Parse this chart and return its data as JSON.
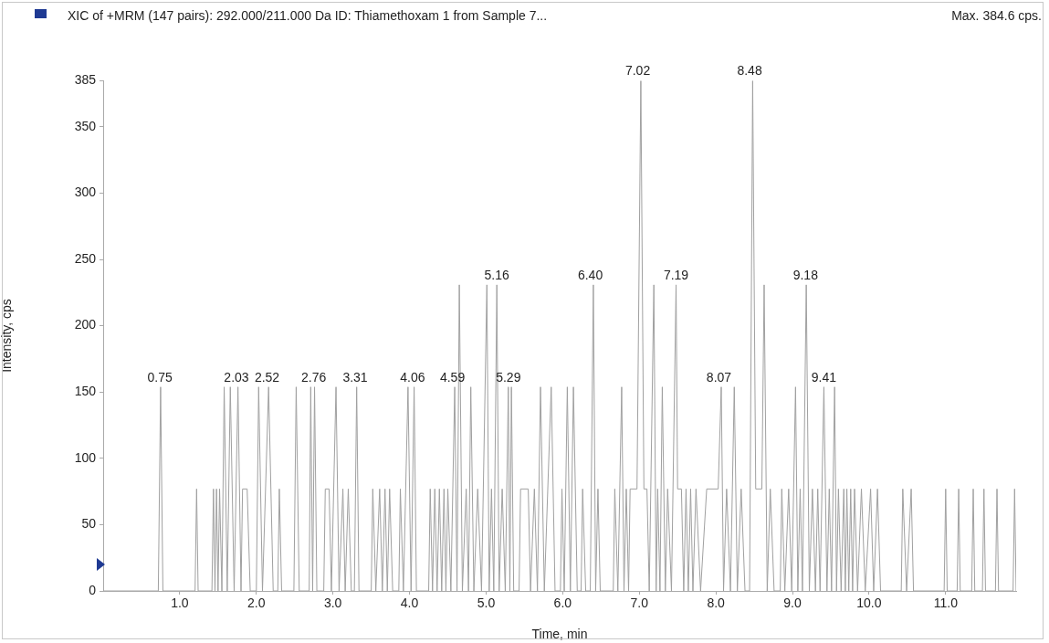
{
  "chart_data": {
    "type": "line",
    "title": "XIC of +MRM (147 pairs): 292.000/211.000 Da ID: Thiamethoxam 1  from Sample 7...",
    "xlabel": "Time, min",
    "ylabel": "Intensity, cps",
    "xlim": [
      0,
      11.92
    ],
    "ylim": [
      0,
      385
    ],
    "xticks": [
      {
        "value": 1,
        "label": "1.0"
      },
      {
        "value": 2,
        "label": "2.0"
      },
      {
        "value": 3,
        "label": "3.0"
      },
      {
        "value": 4,
        "label": "4.0"
      },
      {
        "value": 5,
        "label": "5.0"
      },
      {
        "value": 6,
        "label": "6.0"
      },
      {
        "value": 7,
        "label": "7.0"
      },
      {
        "value": 8,
        "label": "8.0"
      },
      {
        "value": 9,
        "label": "9.0"
      },
      {
        "value": 10,
        "label": "10.0"
      },
      {
        "value": 11,
        "label": "11.0"
      }
    ],
    "yticks": [
      0,
      50,
      100,
      150,
      200,
      250,
      300,
      350,
      385
    ],
    "legend": false,
    "grid": false,
    "series": [
      {
        "color": "#a0a0a0",
        "x": [
          0,
          0.72,
          0.75,
          0.78,
          1.2,
          1.22,
          1.24,
          1.42,
          1.44,
          1.46,
          1.48,
          1.5,
          1.52,
          1.55,
          1.58,
          1.62,
          1.66,
          1.71,
          1.76,
          1.8,
          1.82,
          1.88,
          1.92,
          2.0,
          2.03,
          2.08,
          2.16,
          2.22,
          2.28,
          2.3,
          2.33,
          2.49,
          2.52,
          2.56,
          2.69,
          2.71,
          2.735,
          2.76,
          2.79,
          2.88,
          2.9,
          2.95,
          2.98,
          3.04,
          3.08,
          3.13,
          3.16,
          3.2,
          3.24,
          3.28,
          3.31,
          3.34,
          3.5,
          3.52,
          3.56,
          3.61,
          3.645,
          3.68,
          3.71,
          3.74,
          3.78,
          3.86,
          3.88,
          3.92,
          3.98,
          4.02,
          4.06,
          4.09,
          4.25,
          4.27,
          4.3,
          4.33,
          4.36,
          4.39,
          4.42,
          4.45,
          4.475,
          4.5,
          4.54,
          4.59,
          4.62,
          4.65,
          4.69,
          4.74,
          4.77,
          4.8,
          4.84,
          4.89,
          4.94,
          5.01,
          5.04,
          5.07,
          5.1,
          5.14,
          5.17,
          5.21,
          5.25,
          5.29,
          5.31,
          5.33,
          5.36,
          5.43,
          5.45,
          5.55,
          5.58,
          5.63,
          5.67,
          5.71,
          5.76,
          5.85,
          5.9,
          5.97,
          5.99,
          6.02,
          6.06,
          6.1,
          6.14,
          6.19,
          6.24,
          6.26,
          6.3,
          6.36,
          6.4,
          6.43,
          6.46,
          6.49,
          6.66,
          6.68,
          6.72,
          6.77,
          6.8,
          6.83,
          6.86,
          6.88,
          6.97,
          7.02,
          7.06,
          7.1,
          7.13,
          7.19,
          7.22,
          7.24,
          7.27,
          7.3,
          7.34,
          7.37,
          7.42,
          7.48,
          7.5,
          7.55,
          7.58,
          7.61,
          7.64,
          7.67,
          7.7,
          7.74,
          7.8,
          7.88,
          8.03,
          8.07,
          8.1,
          8.14,
          8.19,
          8.24,
          8.28,
          8.33,
          8.38,
          8.44,
          8.48,
          8.52,
          8.6,
          8.63,
          8.67,
          8.71,
          8.76,
          8.84,
          8.86,
          8.9,
          8.95,
          8.99,
          9.04,
          9.07,
          9.1,
          9.13,
          9.18,
          9.22,
          9.26,
          9.3,
          9.33,
          9.36,
          9.41,
          9.45,
          9.48,
          9.51,
          9.55,
          9.575,
          9.6,
          9.635,
          9.67,
          9.69,
          9.71,
          9.735,
          9.76,
          9.785,
          9.81,
          9.85,
          9.9,
          9.95,
          10.02,
          10.06,
          10.11,
          10.15,
          10.42,
          10.44,
          10.49,
          10.55,
          10.58,
          10.98,
          11.0,
          11.02,
          11.15,
          11.17,
          11.19,
          11.34,
          11.36,
          11.38,
          11.48,
          11.5,
          11.52,
          11.65,
          11.67,
          11.69,
          11.88,
          11.9,
          11.92
        ],
        "values": [
          0,
          0,
          153.8,
          0,
          0,
          76.9,
          0,
          0,
          76.9,
          0,
          76.9,
          0,
          76.9,
          0,
          153.8,
          0,
          153.8,
          0,
          153.8,
          0,
          76.9,
          76.9,
          0,
          0,
          153.8,
          0,
          153.8,
          0,
          0,
          76.9,
          0,
          0,
          153.8,
          0,
          0,
          153.8,
          0,
          153.8,
          0,
          0,
          76.9,
          76.9,
          0,
          153.8,
          0,
          76.9,
          0,
          76.9,
          0,
          0,
          153.8,
          0,
          0,
          76.9,
          0,
          76.9,
          0,
          76.9,
          0,
          76.9,
          0,
          0,
          76.9,
          0,
          153.8,
          0,
          153.8,
          0,
          0,
          76.9,
          0,
          76.9,
          0,
          76.9,
          0,
          76.9,
          0,
          76.9,
          0,
          153.8,
          0,
          230.8,
          0,
          76.9,
          0,
          153.8,
          0,
          76.9,
          0,
          230.8,
          0,
          76.9,
          0,
          230.8,
          0,
          76.9,
          0,
          153.8,
          0,
          153.8,
          0,
          0,
          76.9,
          76.9,
          0,
          76.9,
          0,
          153.8,
          0,
          153.8,
          0,
          0,
          76.9,
          0,
          153.8,
          0,
          153.8,
          0,
          0,
          76.9,
          0,
          0,
          230.8,
          0,
          76.9,
          0,
          0,
          76.9,
          0,
          153.8,
          0,
          76.9,
          0,
          76.9,
          76.9,
          384.6,
          76.9,
          76.9,
          0,
          230.8,
          0,
          76.9,
          0,
          153.8,
          0,
          76.9,
          0,
          230.8,
          76.9,
          76.9,
          0,
          76.9,
          0,
          76.9,
          0,
          76.9,
          0,
          76.9,
          76.9,
          153.8,
          0,
          76.9,
          0,
          153.8,
          0,
          76.9,
          0,
          0,
          384.6,
          76.9,
          76.9,
          230.8,
          0,
          76.9,
          0,
          0,
          76.9,
          0,
          76.9,
          0,
          153.8,
          0,
          76.9,
          0,
          230.8,
          0,
          76.9,
          0,
          76.9,
          0,
          153.8,
          0,
          76.9,
          0,
          153.8,
          0,
          76.9,
          0,
          76.9,
          0,
          76.9,
          0,
          76.9,
          0,
          76.9,
          0,
          76.9,
          0,
          76.9,
          0,
          76.9,
          0,
          0,
          76.9,
          0,
          76.9,
          0,
          0,
          76.9,
          0,
          0,
          76.9,
          0,
          0,
          76.9,
          0,
          0,
          76.9,
          0,
          0,
          76.9,
          0,
          0,
          76.9,
          0
        ]
      }
    ],
    "annotations": [
      "Max. 384.6 cps.",
      {
        "text": "0.75",
        "x": 0.74,
        "y": 153.8
      },
      {
        "text": "2.03",
        "x": 1.74,
        "y": 153.8
      },
      {
        "text": "2.52",
        "x": 2.14,
        "y": 153.8
      },
      {
        "text": "2.76",
        "x": 2.75,
        "y": 153.8
      },
      {
        "text": "3.31",
        "x": 3.29,
        "y": 153.8
      },
      {
        "text": "4.06",
        "x": 4.04,
        "y": 153.8
      },
      {
        "text": "4.59",
        "x": 4.56,
        "y": 153.8
      },
      {
        "text": "5.16",
        "x": 5.14,
        "y": 230.8
      },
      {
        "text": "5.29",
        "x": 5.29,
        "y": 153.8
      },
      {
        "text": "6.40",
        "x": 6.36,
        "y": 230.8
      },
      {
        "text": "7.02",
        "x": 6.98,
        "y": 384.6
      },
      {
        "text": "7.19",
        "x": 7.48,
        "y": 230.8
      },
      {
        "text": "8.07",
        "x": 8.04,
        "y": 153.8
      },
      {
        "text": "8.48",
        "x": 8.44,
        "y": 384.6
      },
      {
        "text": "9.18",
        "x": 9.17,
        "y": 230.8
      },
      {
        "text": "9.41",
        "x": 9.41,
        "y": 153.8
      }
    ]
  }
}
